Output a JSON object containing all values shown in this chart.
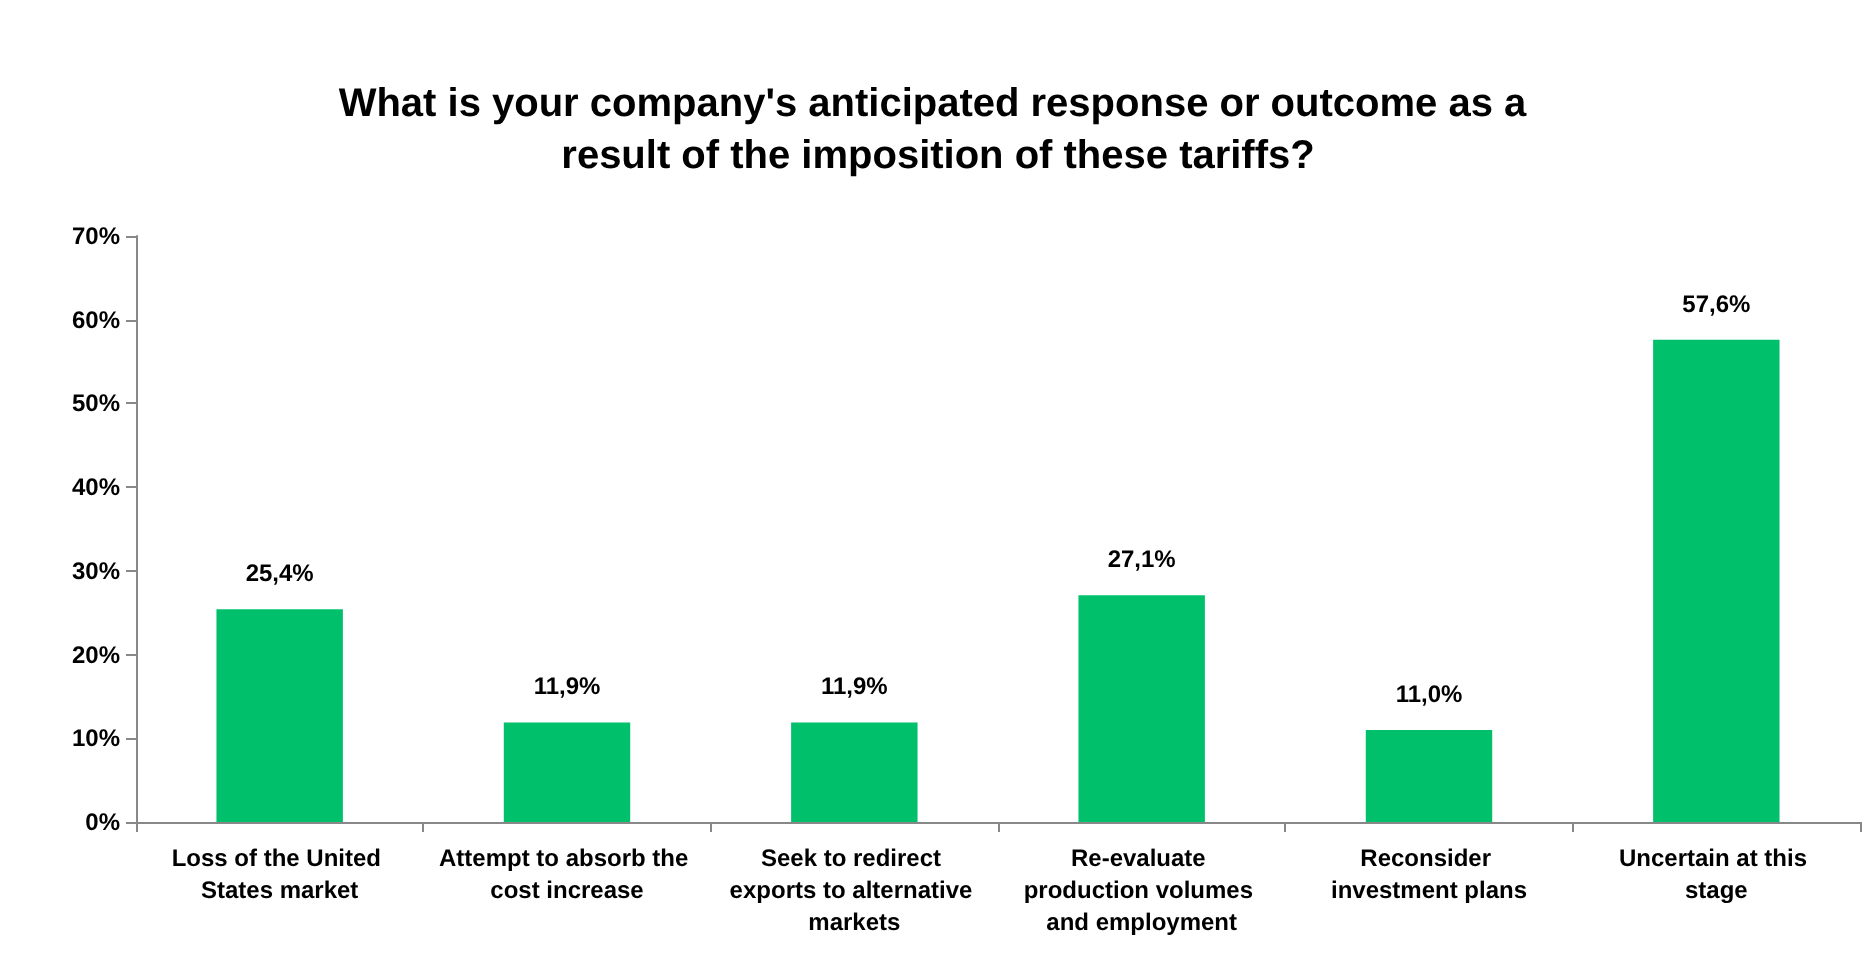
{
  "chart_data": {
    "type": "bar",
    "title": "What is your company's anticipated response or outcome as a result of the imposition of these tariffs?",
    "categories": [
      "Loss of the United States market",
      "Attempt to absorb the cost increase",
      "Seek to redirect exports to alternative markets",
      "Re-evaluate production volumes and employment",
      "Reconsider investment plans",
      "Uncertain at this stage"
    ],
    "values": [
      25.4,
      11.9,
      11.9,
      27.1,
      11.0,
      57.6
    ],
    "value_labels": [
      "25,4%",
      "11,9%",
      "11,9%",
      "27,1%",
      "11,0%",
      "57,6%"
    ],
    "color": "#00c06b",
    "ylim": [
      0,
      70
    ],
    "yticks": [
      {
        "value": 0,
        "label": "0%"
      },
      {
        "value": 10,
        "label": "10%"
      },
      {
        "value": 20,
        "label": "20%"
      },
      {
        "value": 30,
        "label": "30%"
      },
      {
        "value": 40,
        "label": "40%"
      },
      {
        "value": 50,
        "label": "50%"
      },
      {
        "value": 60,
        "label": "60%"
      },
      {
        "value": 70,
        "label": "70%"
      }
    ],
    "grid": false
  }
}
